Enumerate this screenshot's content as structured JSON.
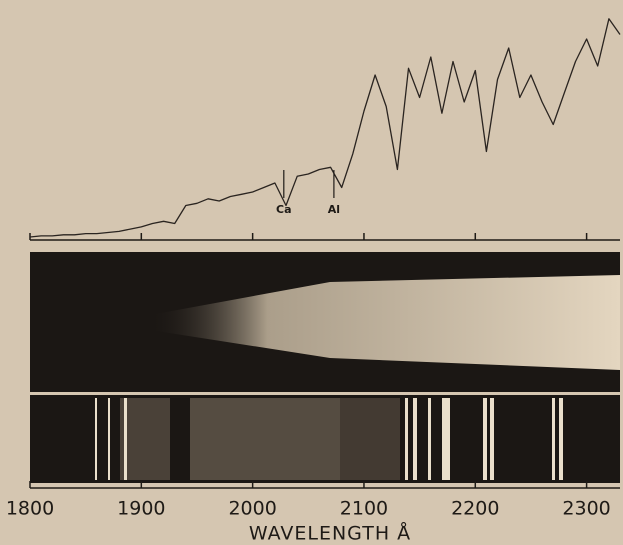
{
  "chart_data": {
    "type": "line",
    "x": [
      1800,
      1810,
      1820,
      1830,
      1840,
      1850,
      1860,
      1870,
      1880,
      1890,
      1900,
      1910,
      1920,
      1930,
      1940,
      1950,
      1960,
      1970,
      1980,
      1990,
      2000,
      2010,
      2020,
      2030,
      2040,
      2050,
      2060,
      2070,
      2080,
      2090,
      2100,
      2110,
      2120,
      2130,
      2140,
      2150,
      2160,
      2170,
      2180,
      2190,
      2200,
      2210,
      2220,
      2230,
      2240,
      2250,
      2260,
      2270,
      2280,
      2290,
      2300,
      2310,
      2320,
      2330
    ],
    "series": [
      {
        "color": "#2a2420",
        "values": [
          0,
          0.5,
          0.5,
          1,
          1,
          1.5,
          1.5,
          2,
          2.5,
          3.5,
          4.5,
          6,
          7,
          6,
          14,
          15,
          17,
          16,
          18,
          19,
          20,
          22,
          24,
          14,
          27,
          28,
          30,
          31,
          22,
          37,
          56,
          72,
          58,
          30,
          75,
          62,
          80,
          55,
          78,
          60,
          74,
          38,
          70,
          84,
          62,
          72,
          60,
          50,
          64,
          78,
          88,
          76,
          97,
          90
        ]
      }
    ],
    "annotations": [
      {
        "text": "Ca",
        "x": 2028
      },
      {
        "text": "Al",
        "x": 2073
      }
    ],
    "xlabel": "WAVELENGTH Å",
    "xlim": [
      1800,
      2330
    ],
    "xticks": [
      1800,
      1900,
      2000,
      2100,
      2200,
      2300
    ],
    "ylim": [
      0,
      100
    ]
  }
}
